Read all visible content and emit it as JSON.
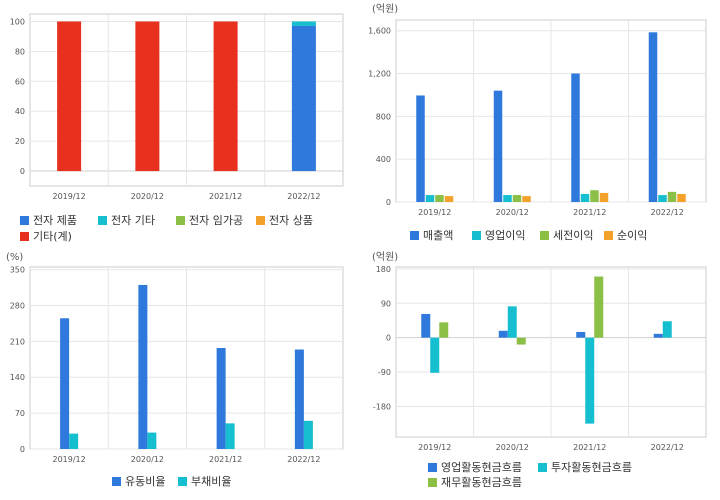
{
  "colors": {
    "blue": "#2f78dc",
    "cyan": "#16bfcf",
    "green": "#8bbf45",
    "orange": "#f2a22b",
    "red": "#e8301e",
    "grid": "#e6e6e6",
    "frame": "#cccccc"
  },
  "chart_data": [
    {
      "id": "product-mix",
      "type": "bar",
      "stacked": true,
      "unit": "",
      "categories": [
        "2019/12",
        "2020/12",
        "2021/12",
        "2022/12"
      ],
      "ylim": [
        -10,
        105
      ],
      "yticks": [
        0,
        20,
        40,
        60,
        80,
        100
      ],
      "ytick_labels": [
        "0",
        "20",
        "40",
        "60",
        "80",
        "100"
      ],
      "series": [
        {
          "name": "전자 제품",
          "color": "#2f78dc",
          "values": [
            0,
            0,
            0,
            97
          ]
        },
        {
          "name": "전자 기타",
          "color": "#16bfcf",
          "values": [
            0,
            0,
            0,
            3
          ]
        },
        {
          "name": "전자 임가공",
          "color": "#8bbf45",
          "values": [
            0,
            0,
            0,
            0
          ]
        },
        {
          "name": "전자 상품",
          "color": "#f2a22b",
          "values": [
            0,
            0,
            0,
            0
          ]
        },
        {
          "name": "기타(계)",
          "color": "#e8301e",
          "values": [
            100,
            100,
            100,
            0
          ]
        }
      ]
    },
    {
      "id": "income",
      "type": "bar",
      "stacked": false,
      "unit": "(억원)",
      "categories": [
        "2019/12",
        "2020/12",
        "2021/12",
        "2022/12"
      ],
      "ylim": [
        0,
        1700
      ],
      "yticks": [
        0,
        400,
        800,
        1200,
        1600
      ],
      "ytick_labels": [
        "0",
        "400",
        "800",
        "1,200",
        "1,600"
      ],
      "series": [
        {
          "name": "매출액",
          "color": "#2f78dc",
          "values": [
            995,
            1040,
            1200,
            1585
          ]
        },
        {
          "name": "영업이익",
          "color": "#16bfcf",
          "values": [
            65,
            65,
            75,
            65
          ]
        },
        {
          "name": "세전이익",
          "color": "#8bbf45",
          "values": [
            65,
            65,
            110,
            95
          ]
        },
        {
          "name": "순이익",
          "color": "#f2a22b",
          "values": [
            55,
            55,
            85,
            75
          ]
        }
      ]
    },
    {
      "id": "ratios",
      "type": "bar",
      "stacked": false,
      "unit": "(%)",
      "categories": [
        "2019/12",
        "2020/12",
        "2021/12",
        "2022/12"
      ],
      "ylim": [
        0,
        355
      ],
      "yticks": [
        0,
        70,
        140,
        210,
        280,
        350
      ],
      "ytick_labels": [
        "0",
        "70",
        "140",
        "210",
        "280",
        "350"
      ],
      "series": [
        {
          "name": "유동비율",
          "color": "#2f78dc",
          "values": [
            255,
            320,
            197,
            194
          ]
        },
        {
          "name": "부채비율",
          "color": "#16bfcf",
          "values": [
            30,
            32,
            50,
            55
          ]
        }
      ]
    },
    {
      "id": "cashflow",
      "type": "bar",
      "stacked": false,
      "unit": "(억원)",
      "categories": [
        "2019/12",
        "2020/12",
        "2021/12",
        "2022/12"
      ],
      "ylim": [
        -260,
        185
      ],
      "yticks": [
        -180,
        -90,
        0,
        90,
        180
      ],
      "ytick_labels": [
        "-180",
        "-90",
        "0",
        "90",
        "180"
      ],
      "series": [
        {
          "name": "영업활동현금흐름",
          "color": "#2f78dc",
          "values": [
            62,
            18,
            15,
            10
          ]
        },
        {
          "name": "투자활동현금흐름",
          "color": "#16bfcf",
          "values": [
            -92,
            82,
            -225,
            43
          ]
        },
        {
          "name": "재무활동현금흐름",
          "color": "#8bbf45",
          "values": [
            40,
            -18,
            160,
            0
          ]
        }
      ]
    }
  ]
}
